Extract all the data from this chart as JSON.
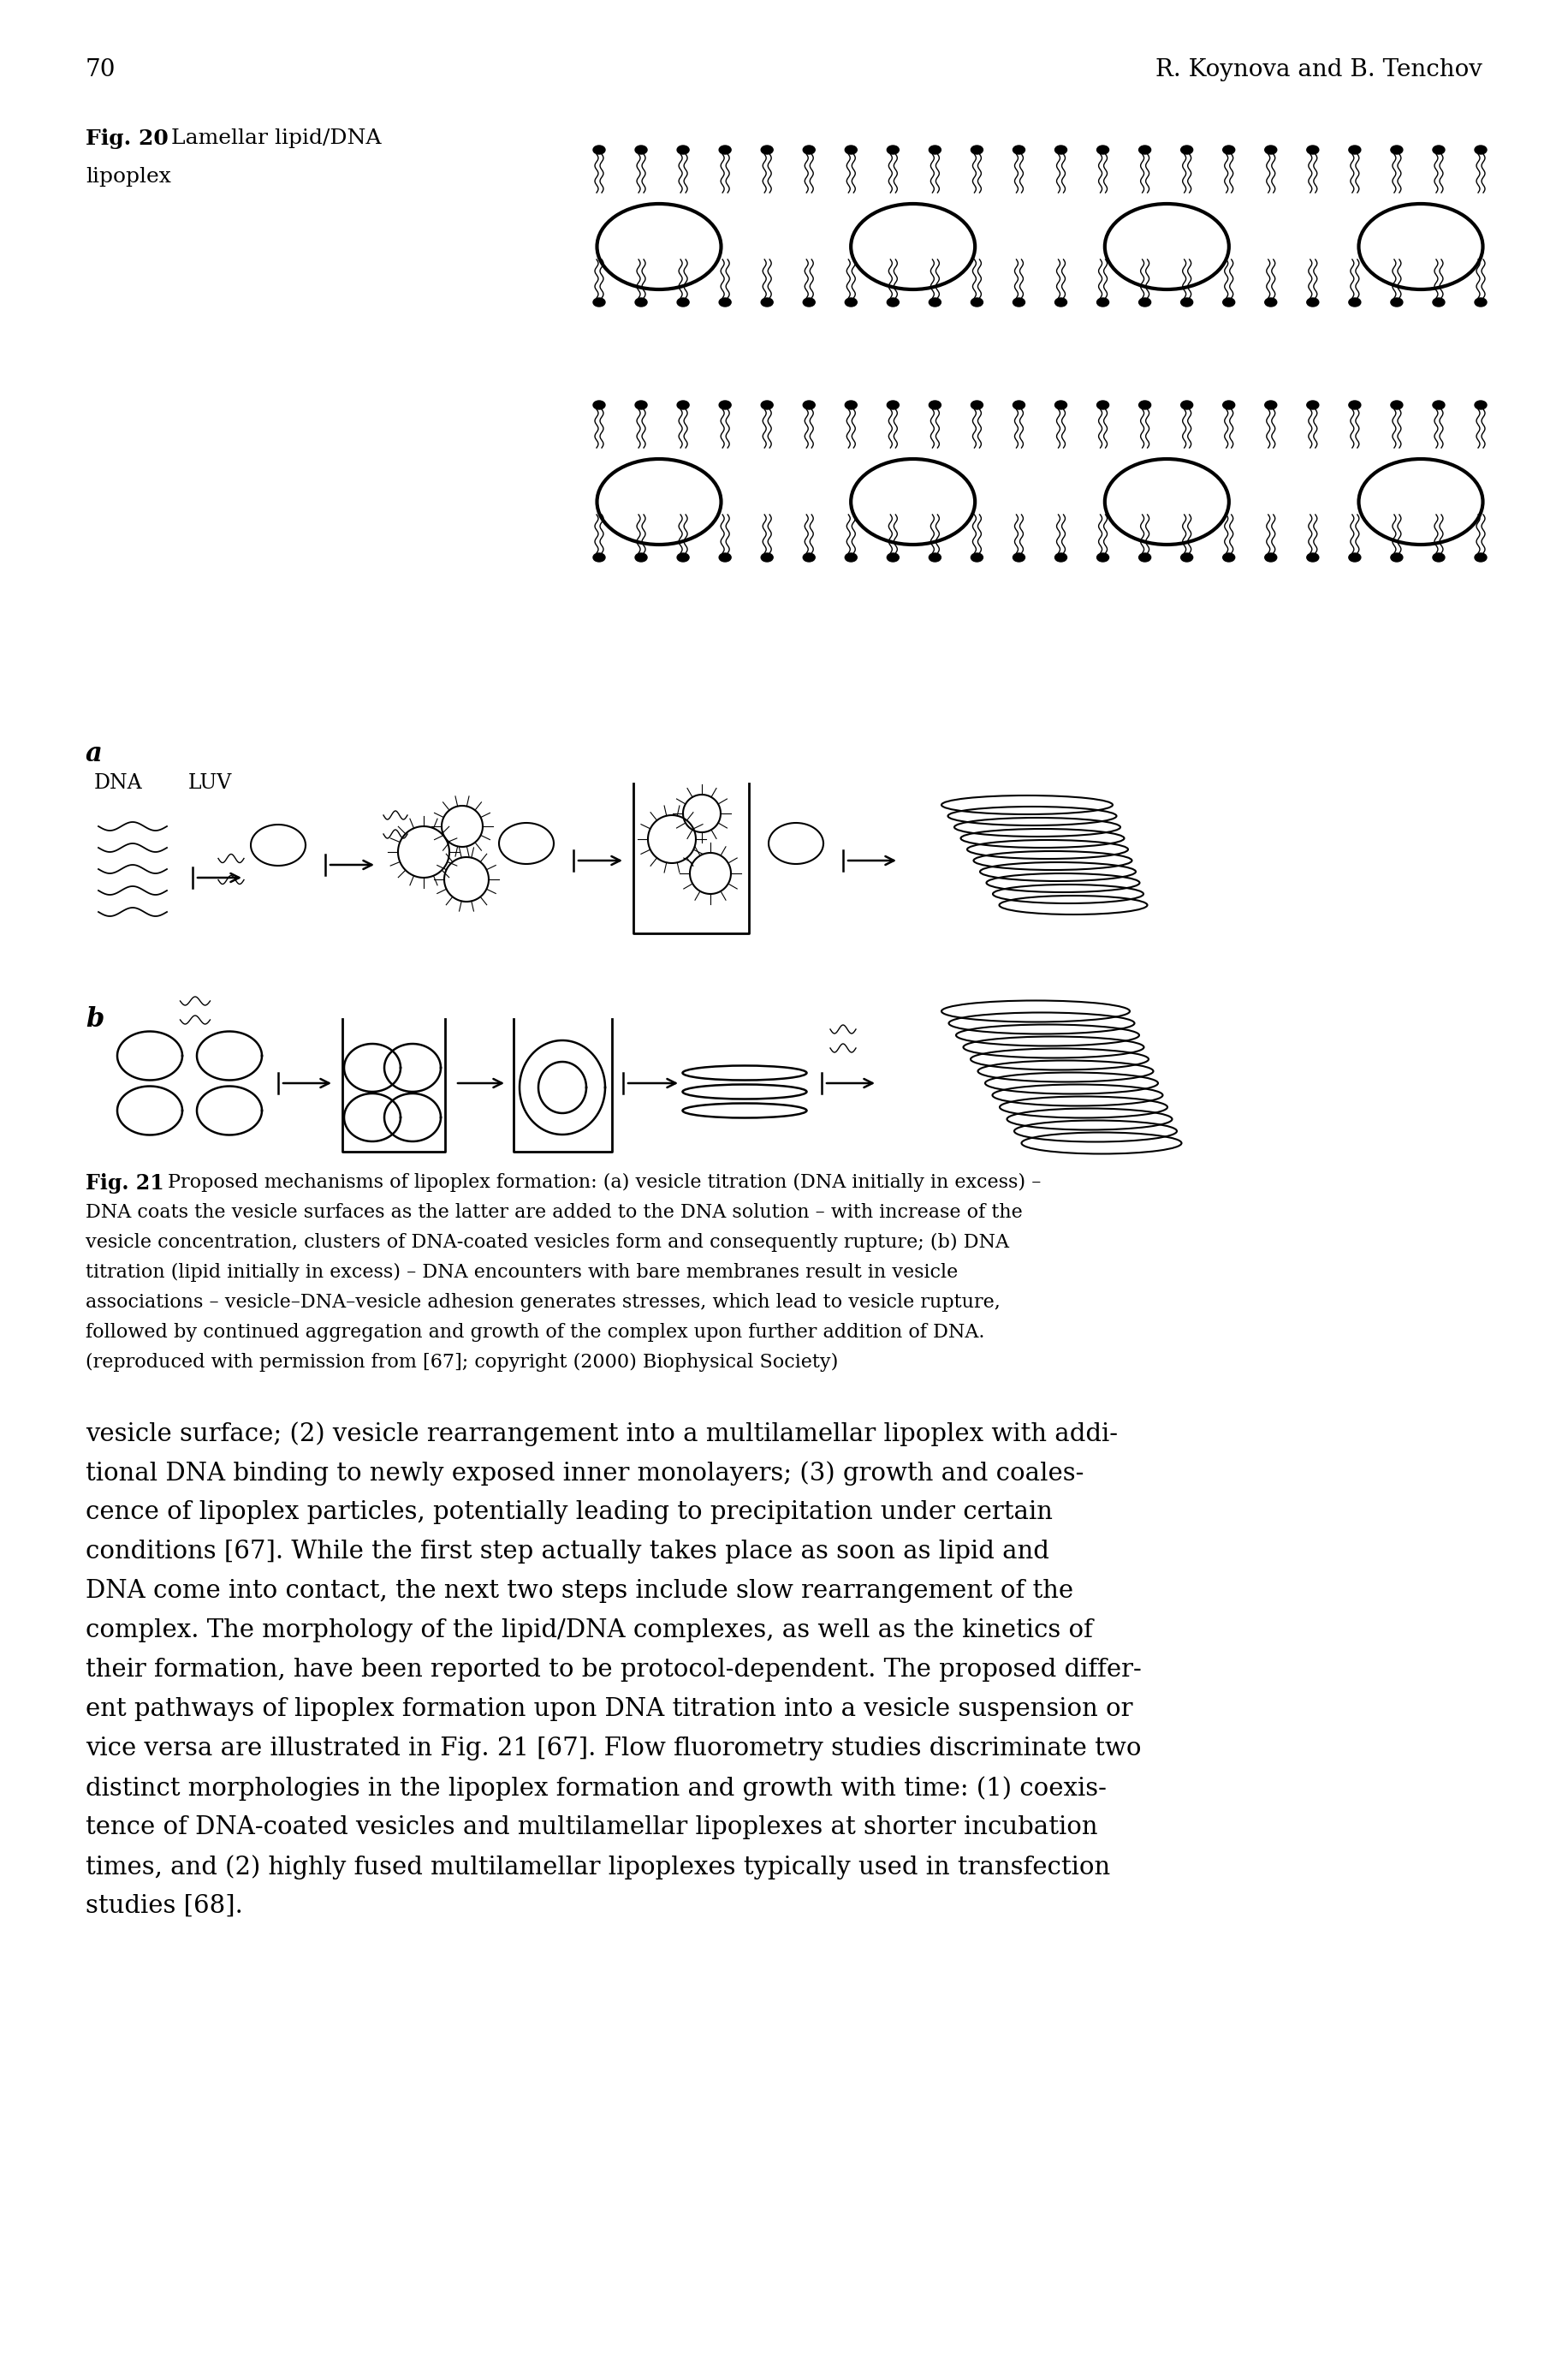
{
  "page_number": "70",
  "header_right": "R. Koynova and B. Tenchov",
  "fig20_bold": "Fig. 20",
  "fig20_rest": " Lamellar lipid/DNA",
  "fig20_line2": "lipoplex",
  "fig21_bold": "Fig. 21",
  "fig21_rest": " Proposed mechanisms of lipoplex formation: (a) vesicle titration (DNA initially in excess) – DNA coats the vesicle surfaces as the latter are added to the DNA solution – with increase of the vesicle concentration, clusters of DNA-coated vesicles form and consequently rupture; (b) DNA titration (lipid initially in excess) – DNA encounters with bare membranes result in vesicle associations – vesicle–DNA–vesicle adhesion generates stresses, which lead to vesicle rupture, followed by continued aggregation and growth of the complex upon further addition of DNA. (reproduced with permission from [67]; copyright (2000) Biophysical Society)",
  "caption_lines": [
    "Proposed mechanisms of lipoplex formation: (a) vesicle titration (DNA initially in excess) –",
    "DNA coats the vesicle surfaces as the latter are added to the DNA solution – with increase of the",
    "vesicle concentration, clusters of DNA-coated vesicles form and consequently rupture; (b) DNA",
    "titration (lipid initially in excess) – DNA encounters with bare membranes result in vesicle",
    "associations – vesicle–DNA–vesicle adhesion generates stresses, which lead to vesicle rupture,",
    "followed by continued aggregation and growth of the complex upon further addition of DNA.",
    "(reproduced with permission from [67]; copyright (2000) Biophysical Society)"
  ],
  "body_lines": [
    "vesicle surface; (2) vesicle rearrangement into a multilamellar lipoplex with addi-",
    "tional DNA binding to newly exposed inner monolayers; (3) growth and coales-",
    "cence of lipoplex particles, potentially leading to precipitation under certain",
    "conditions [67]. While the first step actually takes place as soon as lipid and",
    "DNA come into contact, the next two steps include slow rearrangement of the",
    "complex. The morphology of the lipid/DNA complexes, as well as the kinetics of",
    "their formation, have been reported to be protocol-dependent. The proposed differ-",
    "ent pathways of lipoplex formation upon DNA titration into a vesicle suspension or",
    "vice versa are illustrated in Fig. 21 [67]. Flow fluorometry studies discriminate two",
    "distinct morphologies in the lipoplex formation and growth with time: (1) coexis-",
    "tence of DNA-coated vesicles and multilamellar lipoplexes at shorter incubation",
    "times, and (2) highly fused multilamellar lipoplexes typically used in transfection",
    "studies [68]."
  ],
  "background_color": "#ffffff"
}
